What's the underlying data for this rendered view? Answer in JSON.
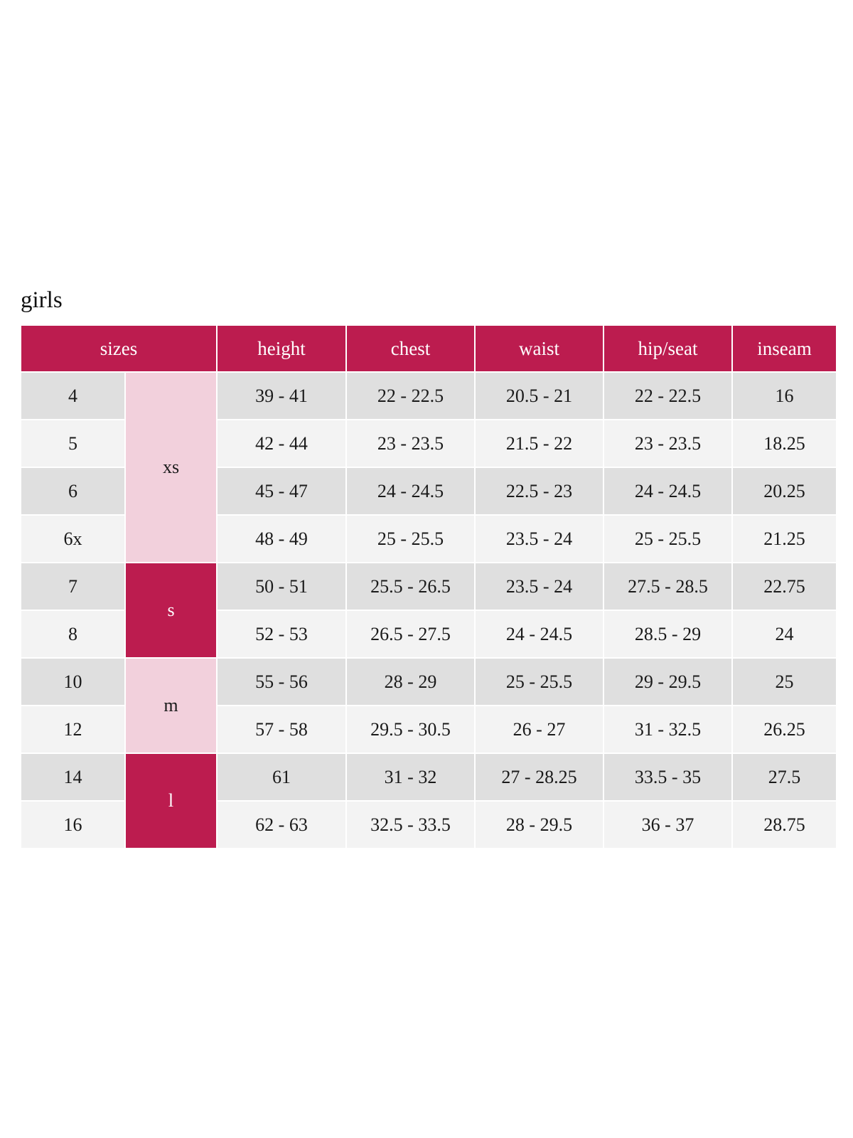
{
  "title": "girls",
  "colors": {
    "header": "#bc1c4f",
    "xs_m_band": "#f2d0dc",
    "s_l_band": "#bc1c4f",
    "row_dark": "#dfdfdf",
    "row_light": "#f3f3f3"
  },
  "headers": [
    "sizes",
    "height",
    "chest",
    "waist",
    "hip/seat",
    "inseam"
  ],
  "groups": [
    {
      "label": "xs",
      "rows": 4,
      "style": "pink"
    },
    {
      "label": "s",
      "rows": 2,
      "style": "red"
    },
    {
      "label": "m",
      "rows": 2,
      "style": "pink"
    },
    {
      "label": "l",
      "rows": 2,
      "style": "red"
    }
  ],
  "rows": [
    [
      "4",
      "39 - 41",
      "22 - 22.5",
      "20.5 - 21",
      "22 - 22.5",
      "16"
    ],
    [
      "5",
      "42 - 44",
      "23 - 23.5",
      "21.5 - 22",
      "23 - 23.5",
      "18.25"
    ],
    [
      "6",
      "45 - 47",
      "24 - 24.5",
      "22.5 - 23",
      "24 - 24.5",
      "20.25"
    ],
    [
      "6x",
      "48 - 49",
      "25 - 25.5",
      "23.5 - 24",
      "25 - 25.5",
      "21.25"
    ],
    [
      "7",
      "50 - 51",
      "25.5 - 26.5",
      "23.5 - 24",
      "27.5 - 28.5",
      "22.75"
    ],
    [
      "8",
      "52 - 53",
      "26.5 - 27.5",
      "24 - 24.5",
      "28.5 - 29",
      "24"
    ],
    [
      "10",
      "55 - 56",
      "28 - 29",
      "25 - 25.5",
      "29 - 29.5",
      "25"
    ],
    [
      "12",
      "57 - 58",
      "29.5 - 30.5",
      "26 - 27",
      "31 - 32.5",
      "26.25"
    ],
    [
      "14",
      "61",
      "31 - 32",
      "27 - 28.25",
      "33.5 - 35",
      "27.5"
    ],
    [
      "16",
      "62 - 63",
      "32.5 - 33.5",
      "28 - 29.5",
      "36 - 37",
      "28.75"
    ]
  ]
}
